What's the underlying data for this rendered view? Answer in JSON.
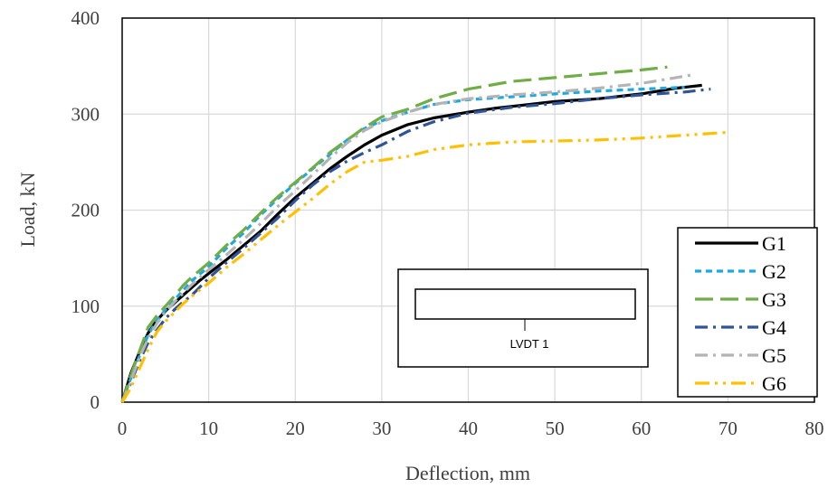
{
  "chart_data": {
    "type": "line",
    "title": "",
    "xlabel": "Deflection, mm",
    "ylabel": "Load, kN",
    "xlim": [
      0,
      80
    ],
    "ylim": [
      0,
      400
    ],
    "x_ticks": [
      "0",
      "10",
      "20",
      "30",
      "40",
      "50",
      "60",
      "70",
      "80"
    ],
    "y_ticks": [
      "0",
      "100",
      "200",
      "300",
      "400"
    ],
    "grid": true,
    "legend_placement": "bottom-right",
    "inset_label": "LVDT 1",
    "series": [
      {
        "name": "G1",
        "color": "#000000",
        "dash": "solid",
        "points": [
          [
            0,
            0
          ],
          [
            1,
            30
          ],
          [
            2,
            52
          ],
          [
            3,
            72
          ],
          [
            4,
            85
          ],
          [
            5,
            95
          ],
          [
            6,
            103
          ],
          [
            7,
            111
          ],
          [
            8,
            119
          ],
          [
            9,
            127
          ],
          [
            10,
            134
          ],
          [
            12,
            148
          ],
          [
            14,
            163
          ],
          [
            16,
            178
          ],
          [
            18,
            196
          ],
          [
            20,
            213
          ],
          [
            22,
            228
          ],
          [
            24,
            243
          ],
          [
            26,
            256
          ],
          [
            28,
            268
          ],
          [
            30,
            278
          ],
          [
            33,
            289
          ],
          [
            36,
            296
          ],
          [
            40,
            302
          ],
          [
            43,
            306
          ],
          [
            46,
            309
          ],
          [
            50,
            313
          ],
          [
            55,
            316
          ],
          [
            60,
            321
          ],
          [
            64,
            327
          ],
          [
            67,
            330
          ]
        ]
      },
      {
        "name": "G2",
        "color": "#1ba9e1",
        "dash": "dashed",
        "points": [
          [
            0,
            0
          ],
          [
            1,
            25
          ],
          [
            2,
            48
          ],
          [
            3,
            70
          ],
          [
            4,
            85
          ],
          [
            5,
            96
          ],
          [
            6,
            106
          ],
          [
            7,
            116
          ],
          [
            8,
            126
          ],
          [
            10,
            141
          ],
          [
            12,
            160
          ],
          [
            14,
            176
          ],
          [
            16,
            195
          ],
          [
            18,
            212
          ],
          [
            20,
            228
          ],
          [
            22,
            243
          ],
          [
            24,
            258
          ],
          [
            26,
            273
          ],
          [
            28,
            285
          ],
          [
            30,
            293
          ],
          [
            33,
            302
          ],
          [
            36,
            310
          ],
          [
            40,
            315
          ],
          [
            45,
            318
          ],
          [
            50,
            321
          ],
          [
            55,
            324
          ],
          [
            60,
            326
          ],
          [
            65,
            328
          ]
        ]
      },
      {
        "name": "G3",
        "color": "#70ad47",
        "dash": "longdash",
        "points": [
          [
            0,
            0
          ],
          [
            1,
            28
          ],
          [
            2,
            53
          ],
          [
            3,
            78
          ],
          [
            4,
            90
          ],
          [
            5,
            100
          ],
          [
            6,
            110
          ],
          [
            7,
            121
          ],
          [
            8,
            130
          ],
          [
            10,
            145
          ],
          [
            12,
            163
          ],
          [
            14,
            179
          ],
          [
            16,
            197
          ],
          [
            18,
            214
          ],
          [
            20,
            229
          ],
          [
            22,
            244
          ],
          [
            24,
            260
          ],
          [
            26,
            273
          ],
          [
            28,
            286
          ],
          [
            30,
            297
          ],
          [
            33,
            305
          ],
          [
            36,
            316
          ],
          [
            40,
            326
          ],
          [
            45,
            334
          ],
          [
            50,
            338
          ],
          [
            55,
            342
          ],
          [
            60,
            346
          ],
          [
            63,
            349
          ]
        ]
      },
      {
        "name": "G4",
        "color": "#2f5597",
        "dash": "dashdot",
        "points": [
          [
            0,
            0
          ],
          [
            1,
            20
          ],
          [
            2,
            43
          ],
          [
            3,
            62
          ],
          [
            4,
            75
          ],
          [
            5,
            87
          ],
          [
            6,
            96
          ],
          [
            7,
            104
          ],
          [
            8,
            111
          ],
          [
            10,
            129
          ],
          [
            12,
            145
          ],
          [
            14,
            160
          ],
          [
            16,
            176
          ],
          [
            18,
            192
          ],
          [
            20,
            210
          ],
          [
            22,
            226
          ],
          [
            24,
            240
          ],
          [
            26,
            251
          ],
          [
            28,
            260
          ],
          [
            30,
            268
          ],
          [
            33,
            282
          ],
          [
            36,
            292
          ],
          [
            40,
            301
          ],
          [
            45,
            307
          ],
          [
            50,
            311
          ],
          [
            55,
            316
          ],
          [
            60,
            320
          ],
          [
            65,
            323
          ],
          [
            68,
            326
          ]
        ]
      },
      {
        "name": "G5",
        "color": "#b4b4b4",
        "dash": "dashdot",
        "points": [
          [
            0,
            0
          ],
          [
            1,
            22
          ],
          [
            2,
            46
          ],
          [
            3,
            67
          ],
          [
            4,
            82
          ],
          [
            5,
            94
          ],
          [
            6,
            104
          ],
          [
            7,
            113
          ],
          [
            8,
            122
          ],
          [
            10,
            138
          ],
          [
            12,
            153
          ],
          [
            14,
            169
          ],
          [
            16,
            186
          ],
          [
            18,
            204
          ],
          [
            20,
            220
          ],
          [
            22,
            237
          ],
          [
            24,
            254
          ],
          [
            26,
            270
          ],
          [
            28,
            283
          ],
          [
            30,
            292
          ],
          [
            33,
            302
          ],
          [
            36,
            310
          ],
          [
            40,
            316
          ],
          [
            45,
            320
          ],
          [
            50,
            323
          ],
          [
            55,
            327
          ],
          [
            60,
            332
          ],
          [
            64,
            338
          ],
          [
            66,
            341
          ]
        ]
      },
      {
        "name": "G6",
        "color": "#ffc000",
        "dash": "dashdotdot",
        "points": [
          [
            0,
            0
          ],
          [
            1,
            15
          ],
          [
            2,
            35
          ],
          [
            3,
            55
          ],
          [
            4,
            73
          ],
          [
            5,
            84
          ],
          [
            6,
            93
          ],
          [
            7,
            102
          ],
          [
            8,
            110
          ],
          [
            10,
            124
          ],
          [
            12,
            140
          ],
          [
            14,
            154
          ],
          [
            16,
            169
          ],
          [
            18,
            184
          ],
          [
            20,
            198
          ],
          [
            22,
            212
          ],
          [
            24,
            227
          ],
          [
            26,
            240
          ],
          [
            28,
            250
          ],
          [
            30,
            252
          ],
          [
            33,
            256
          ],
          [
            36,
            263
          ],
          [
            40,
            268
          ],
          [
            45,
            271
          ],
          [
            50,
            272
          ],
          [
            55,
            273
          ],
          [
            60,
            275
          ],
          [
            65,
            278
          ],
          [
            70,
            281
          ]
        ]
      }
    ]
  }
}
